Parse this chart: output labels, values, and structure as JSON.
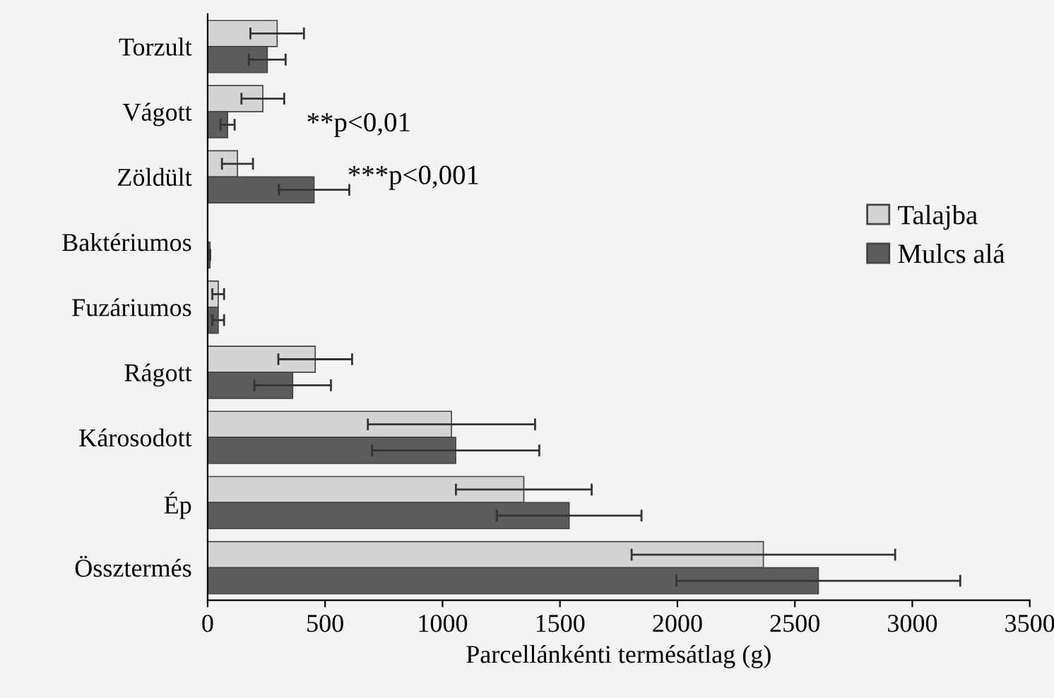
{
  "chart_data": {
    "type": "bar",
    "orientation": "horizontal",
    "xlabel": "Parcellánkénti termésátlag (g)",
    "categories": [
      "Torzult",
      "Vágott",
      "Zöldült",
      "Baktériumos",
      "Fuzáriumos",
      "Rágott",
      "Károsodott",
      "Ép",
      "Össztermés"
    ],
    "series": [
      {
        "name": "Talajba",
        "color": "#d4d4d4",
        "values": [
          296,
          235,
          127,
          null,
          45,
          458,
          1038,
          1346,
          2366
        ],
        "errors": [
          114,
          91,
          66,
          null,
          25,
          157,
          356,
          289,
          561
        ]
      },
      {
        "name": "Mulcs alá",
        "color": "#5c5c5c",
        "values": [
          254,
          85,
          453,
          10,
          45,
          362,
          1056,
          1539,
          2600
        ],
        "errors": [
          78,
          30,
          150,
          null,
          25,
          163,
          356,
          308,
          604
        ]
      }
    ],
    "xlim": [
      0,
      3500
    ],
    "xticks": [
      0,
      500,
      1000,
      1500,
      2000,
      2500,
      3000,
      3500
    ],
    "annotations": [
      "**p<0,01",
      "***p<0,001"
    ],
    "legend": "right",
    "grid": false
  }
}
